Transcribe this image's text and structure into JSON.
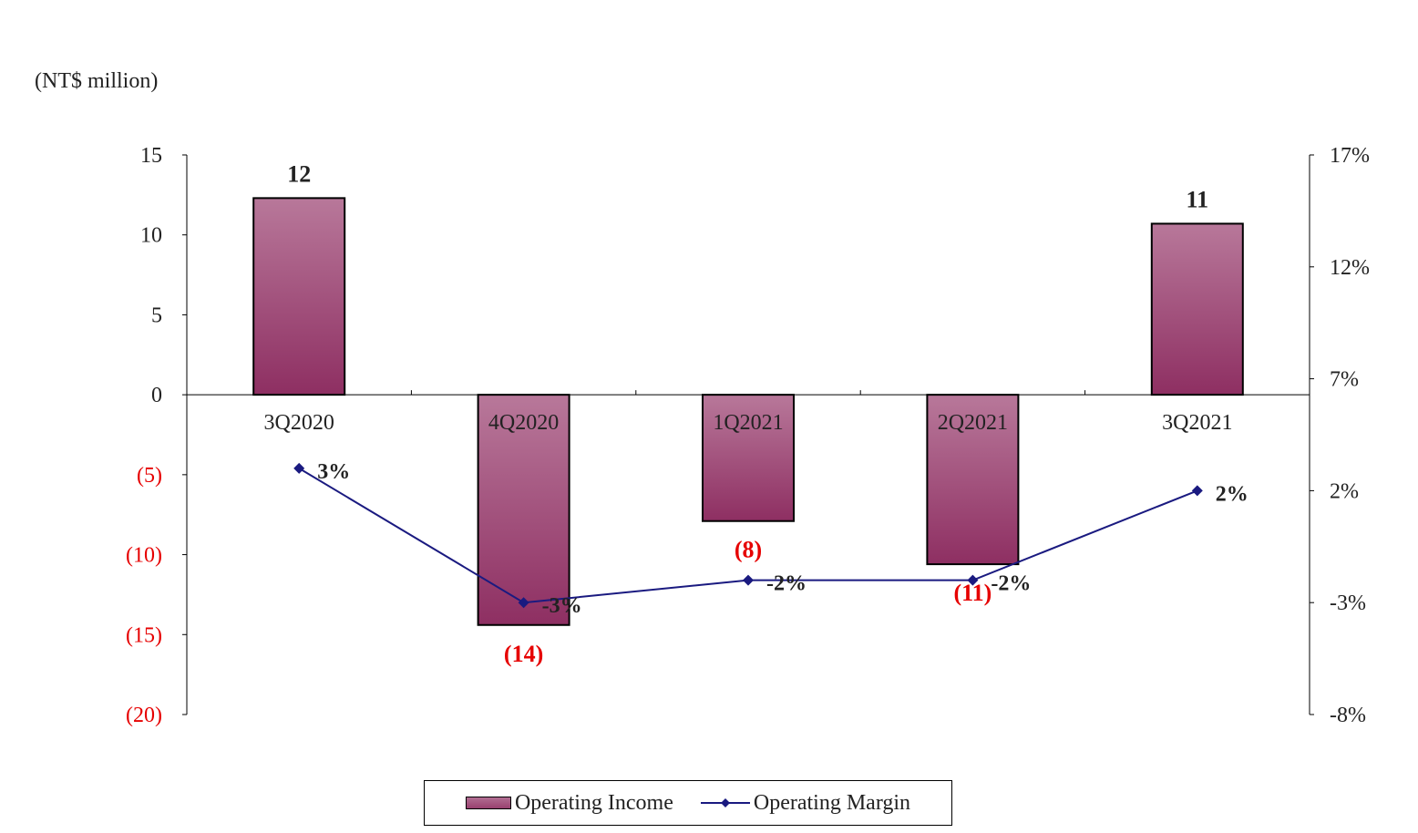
{
  "unit_label": "(NT$ million)",
  "chart_data": {
    "type": "bar",
    "categories": [
      "3Q2020",
      "4Q2020",
      "1Q2021",
      "2Q2021",
      "3Q2021"
    ],
    "series": [
      {
        "name": "Operating Income",
        "type": "bar",
        "axis": "left",
        "values": [
          12.3,
          -14.4,
          -7.9,
          -10.6,
          10.7
        ],
        "labels": [
          "12",
          "(14)",
          "(8)",
          "(11)",
          "11"
        ]
      },
      {
        "name": "Operating Margin",
        "type": "line",
        "axis": "right",
        "values": [
          3,
          -3,
          -2,
          -2,
          2
        ],
        "labels": [
          "3%",
          "-3%",
          "-2%",
          "-2%",
          "2%"
        ]
      }
    ],
    "ylim_left": [
      -20,
      15
    ],
    "yticks_left": [
      15,
      10,
      5,
      0,
      -5,
      -10,
      -15,
      -20
    ],
    "ytick_labels_left": [
      "15",
      "10",
      "5",
      "0",
      "(5)",
      "(10)",
      "(15)",
      "(20)"
    ],
    "ylim_right": [
      -8,
      17
    ],
    "yticks_right": [
      17,
      12,
      7,
      2,
      -3,
      -8
    ],
    "ytick_labels_right": [
      "17%",
      "12%",
      "7%",
      "2%",
      "-3%",
      "-8%"
    ],
    "grid": false,
    "legend_position": "bottom-center",
    "colors": {
      "bar_top": "#b8789a",
      "bar_bottom": "#8e2f62",
      "line": "#1a1a80",
      "negative_text": "#e60000",
      "positive_text": "#222222"
    }
  }
}
